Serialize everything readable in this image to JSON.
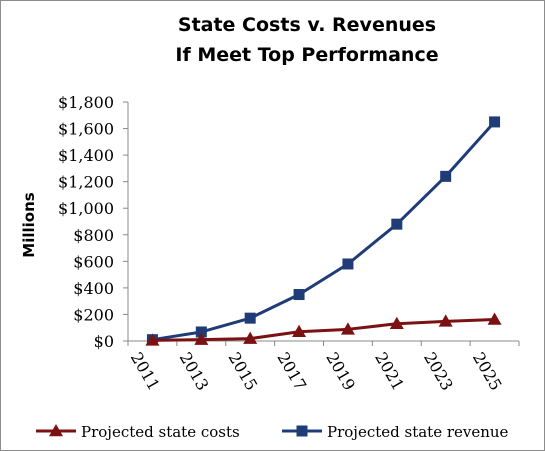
{
  "chart_data": {
    "type": "line",
    "title": [
      "State Costs v. Revenues",
      "If Meet Top Performance"
    ],
    "ylabel": "Millions",
    "xlabel": "",
    "x": [
      "2011",
      "2013",
      "2015",
      "2017",
      "2019",
      "2021",
      "2023",
      "2025"
    ],
    "y_ticks": [
      "$0",
      "$200",
      "$400",
      "$600",
      "$800",
      "$1,000",
      "$1,200",
      "$1,400",
      "$1,600",
      "$1,800"
    ],
    "ylim": [
      0,
      1800
    ],
    "grid": false,
    "legend_position": "bottom",
    "series": [
      {
        "name": "Projected state costs",
        "color": "#7b1113",
        "marker": "triangle",
        "values": [
          5,
          10,
          18,
          70,
          88,
          130,
          148,
          162
        ]
      },
      {
        "name": "Projected state revenue",
        "color": "#1f3c78",
        "marker": "square",
        "values": [
          10,
          68,
          172,
          350,
          580,
          880,
          1240,
          1650
        ]
      }
    ]
  }
}
